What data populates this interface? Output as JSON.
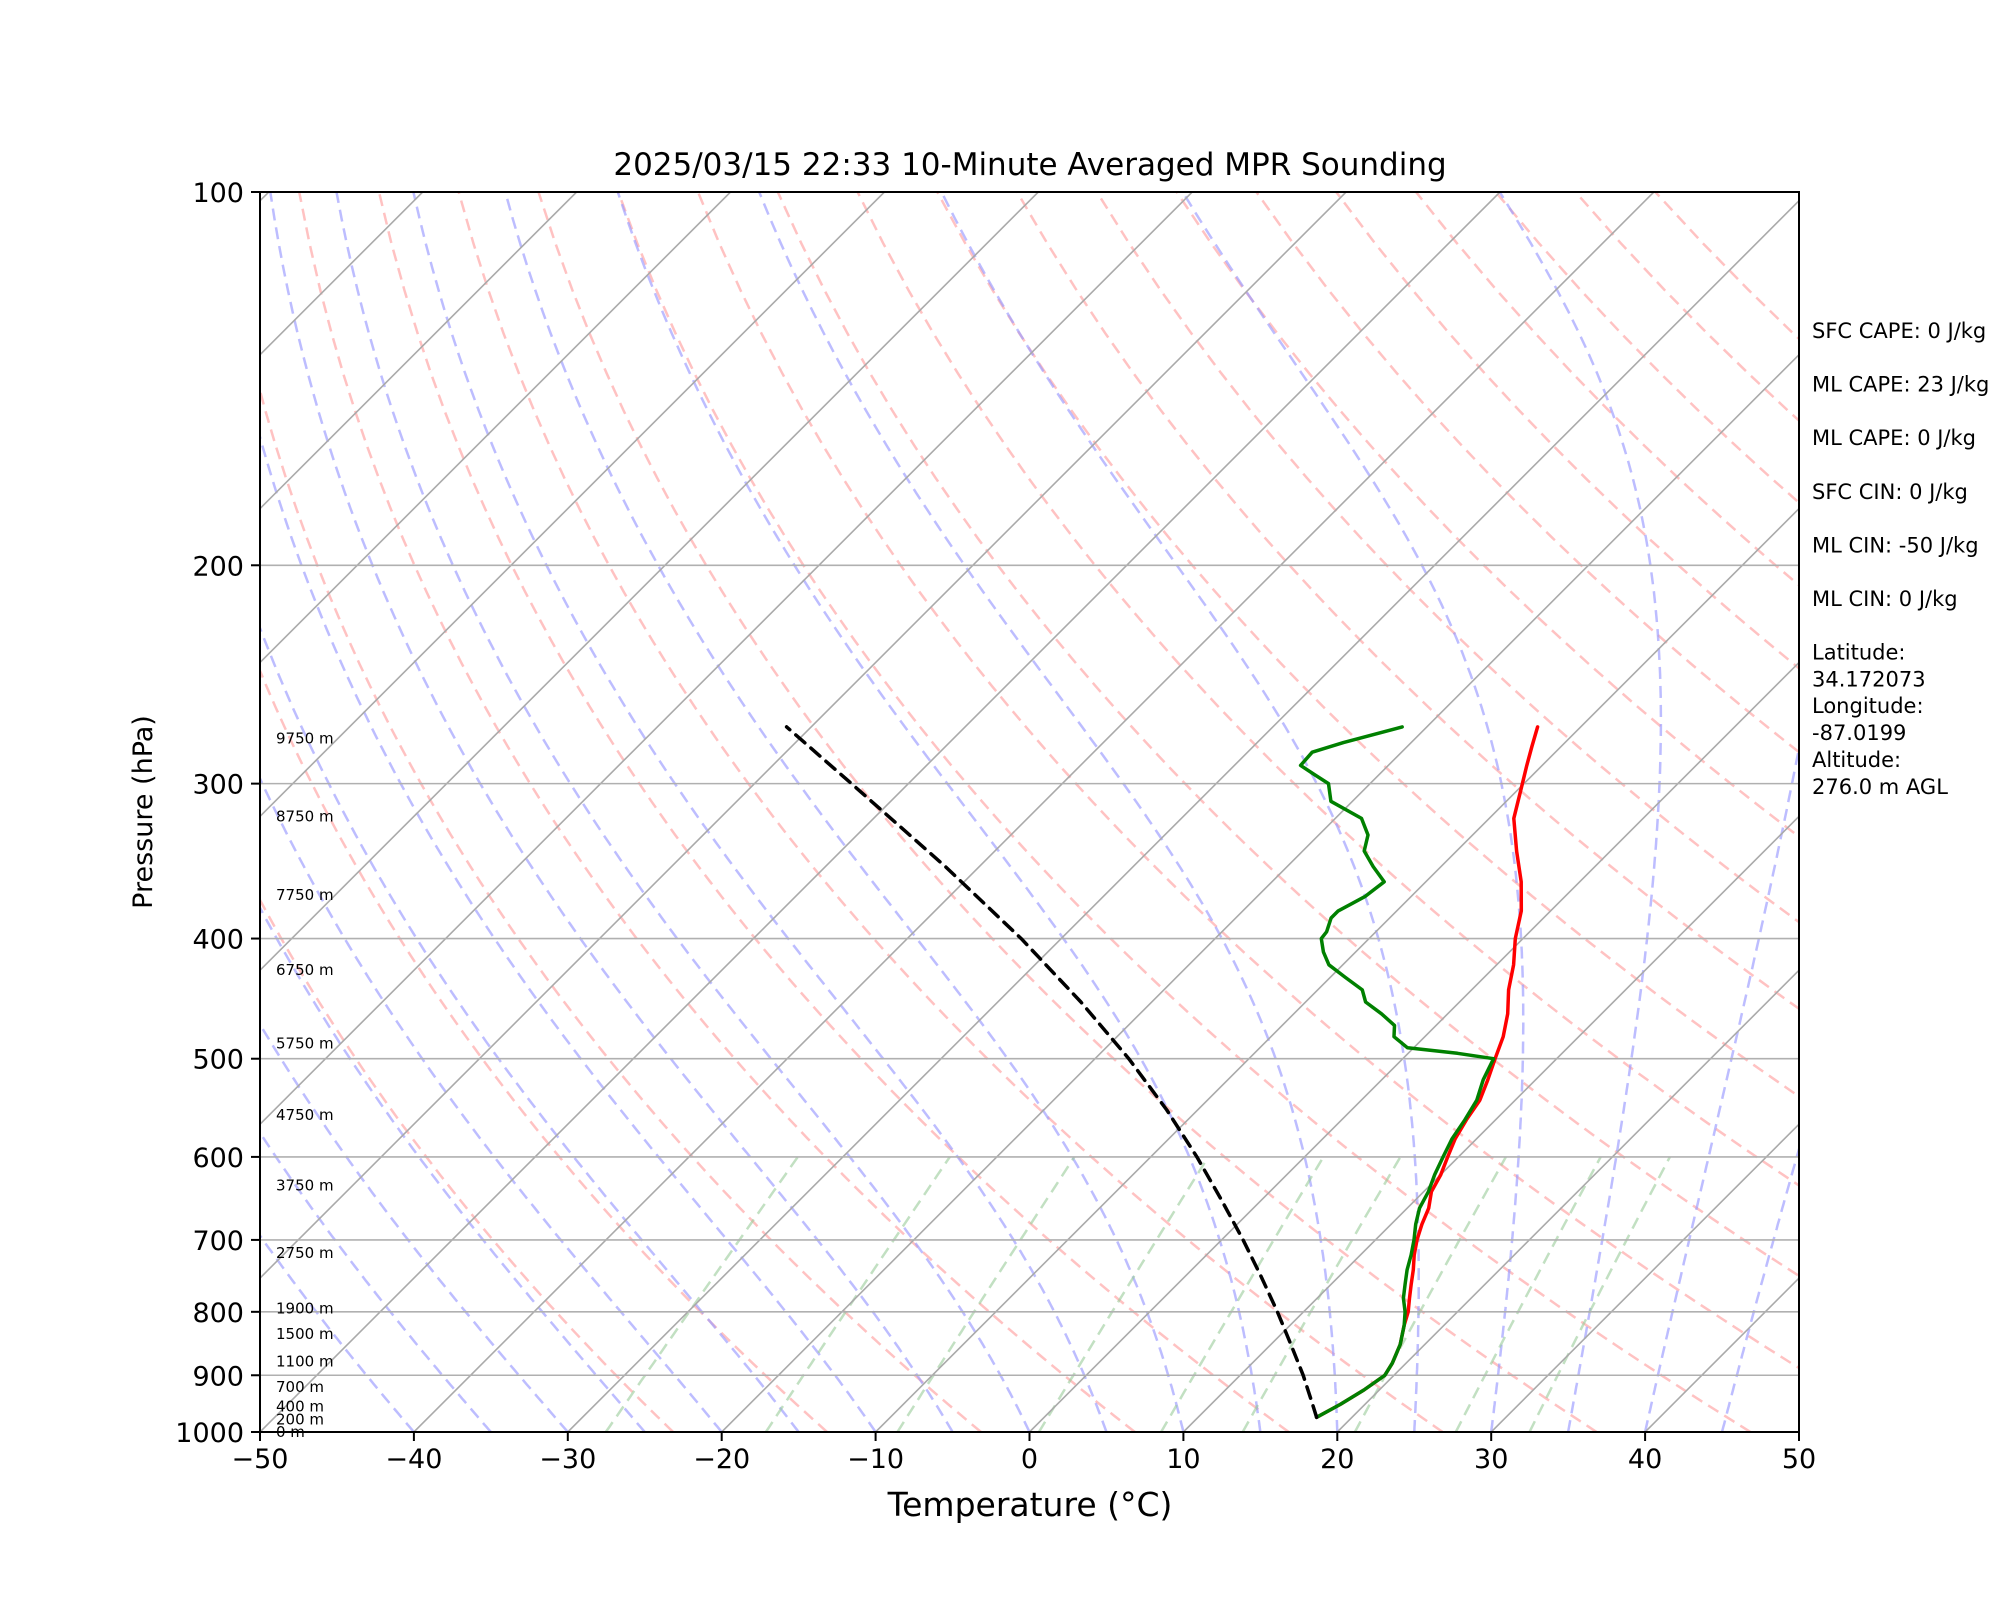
{
  "chart_data": {
    "type": "line",
    "subtype": "skew-t log-p sounding",
    "title": "2025/03/15 22:33 10-Minute Averaged MPR Sounding",
    "xlabel": "Temperature (°C)",
    "ylabel": "Pressure (hPa)",
    "xlim": [
      -50,
      50
    ],
    "ylim": [
      1000,
      100
    ],
    "y_scale": "log",
    "x_ticks": [
      "−50",
      "−40",
      "−30",
      "−20",
      "−10",
      "0",
      "10",
      "20",
      "30",
      "40",
      "50"
    ],
    "x_tick_values": [
      -50,
      -40,
      -30,
      -20,
      -10,
      0,
      10,
      20,
      30,
      40,
      50
    ],
    "y_ticks": [
      "100",
      "200",
      "300",
      "400",
      "500",
      "600",
      "700",
      "800",
      "900",
      "1000"
    ],
    "y_tick_values": [
      100,
      200,
      300,
      400,
      500,
      600,
      700,
      800,
      900,
      1000
    ],
    "grid": true,
    "series": [
      {
        "color": "#ff0000",
        "style": "solid",
        "pressure": [
          973,
          950,
          925,
          900,
          880,
          850,
          820,
          800,
          780,
          760,
          740,
          720,
          700,
          680,
          660,
          640,
          620,
          600,
          580,
          560,
          540,
          520,
          500,
          480,
          460,
          440,
          420,
          400,
          380,
          360,
          340,
          320,
          300,
          290,
          280,
          270
        ],
        "temperature": [
          17.7,
          18.4,
          19.0,
          19.4,
          19.1,
          18.4,
          17.4,
          16.8,
          16.0,
          15.2,
          14.4,
          13.5,
          12.7,
          12.0,
          11.4,
          10.5,
          10.0,
          9.3,
          8.6,
          8.1,
          7.7,
          6.9,
          6.0,
          5.1,
          3.9,
          2.4,
          1.1,
          -0.5,
          -1.9,
          -3.8,
          -6.1,
          -8.4,
          -10.1,
          -11.0,
          -11.9,
          -12.8
        ]
      },
      {
        "color": "#008000",
        "style": "solid",
        "pressure": [
          973,
          950,
          925,
          900,
          880,
          850,
          820,
          800,
          780,
          760,
          740,
          720,
          700,
          680,
          660,
          640,
          620,
          600,
          580,
          560,
          540,
          520,
          500,
          495,
          490,
          480,
          470,
          460,
          450,
          440,
          430,
          420,
          410,
          400,
          395,
          385,
          380,
          375,
          370,
          360,
          350,
          340,
          330,
          320,
          310,
          300,
          295,
          290,
          283,
          278,
          270
        ],
        "temperature": [
          17.7,
          18.4,
          19.0,
          19.4,
          19.1,
          18.4,
          17.4,
          16.6,
          15.6,
          14.8,
          14.0,
          13.3,
          12.5,
          11.6,
          10.8,
          10.3,
          9.6,
          9.0,
          8.4,
          8.0,
          7.5,
          6.6,
          5.9,
          3.2,
          -0.4,
          -2.0,
          -2.7,
          -4.3,
          -6.1,
          -7.1,
          -9.0,
          -10.9,
          -12.1,
          -13.1,
          -13.2,
          -13.8,
          -13.8,
          -13.4,
          -13.0,
          -12.7,
          -14.4,
          -16.0,
          -16.8,
          -18.3,
          -21.4,
          -22.7,
          -24.2,
          -25.7,
          -25.8,
          -24.4,
          -21.6
        ]
      },
      {
        "color": "#000000",
        "style": "dashed",
        "pressure": [
          973,
          950,
          900,
          850,
          800,
          750,
          700,
          650,
          600,
          550,
          500,
          450,
          400,
          350,
          300,
          270
        ],
        "temperature": [
          17.7,
          16.6,
          14.1,
          11.3,
          8.3,
          5.0,
          1.4,
          -2.6,
          -7.0,
          -12.0,
          -17.8,
          -24.6,
          -32.6,
          -42.2,
          -53.7,
          -61.6
        ]
      }
    ],
    "height_labels": [
      {
        "text": "0 m",
        "pressure": 1000
      },
      {
        "text": "200 m",
        "pressure": 977
      },
      {
        "text": "400 m",
        "pressure": 954
      },
      {
        "text": "700 m",
        "pressure": 920
      },
      {
        "text": "1100 m",
        "pressure": 877
      },
      {
        "text": "1500 m",
        "pressure": 834
      },
      {
        "text": "1900 m",
        "pressure": 795
      },
      {
        "text": "2750 m",
        "pressure": 717
      },
      {
        "text": "3750 m",
        "pressure": 633
      },
      {
        "text": "4750 m",
        "pressure": 555
      },
      {
        "text": "5750 m",
        "pressure": 486
      },
      {
        "text": "6750 m",
        "pressure": 424
      },
      {
        "text": "7750 m",
        "pressure": 369
      },
      {
        "text": "8750 m",
        "pressure": 319
      },
      {
        "text": "9750 m",
        "pressure": 276
      }
    ],
    "annotations": [
      "SFC CAPE: 0 J/kg",
      "ML CAPE: 23 J/kg",
      "ML CAPE: 0 J/kg",
      "SFC CIN: 0 J/kg",
      "ML CIN: -50 J/kg",
      "ML CIN: 0 J/kg",
      "Latitude:\n34.172073",
      "Longitude:\n-87.0199",
      "Altitude:\n276.0 m AGL"
    ],
    "background_lines": {
      "isotherms": {
        "color": "#aaaaaa",
        "spacing": 10
      },
      "dry_adiabats": {
        "color": "#ff9999",
        "style": "dashed"
      },
      "moist_adiabats": {
        "color": "#9999ff",
        "style": "dashed"
      },
      "mixing_ratio": {
        "color": "#99cc99",
        "style": "dashed"
      }
    }
  }
}
